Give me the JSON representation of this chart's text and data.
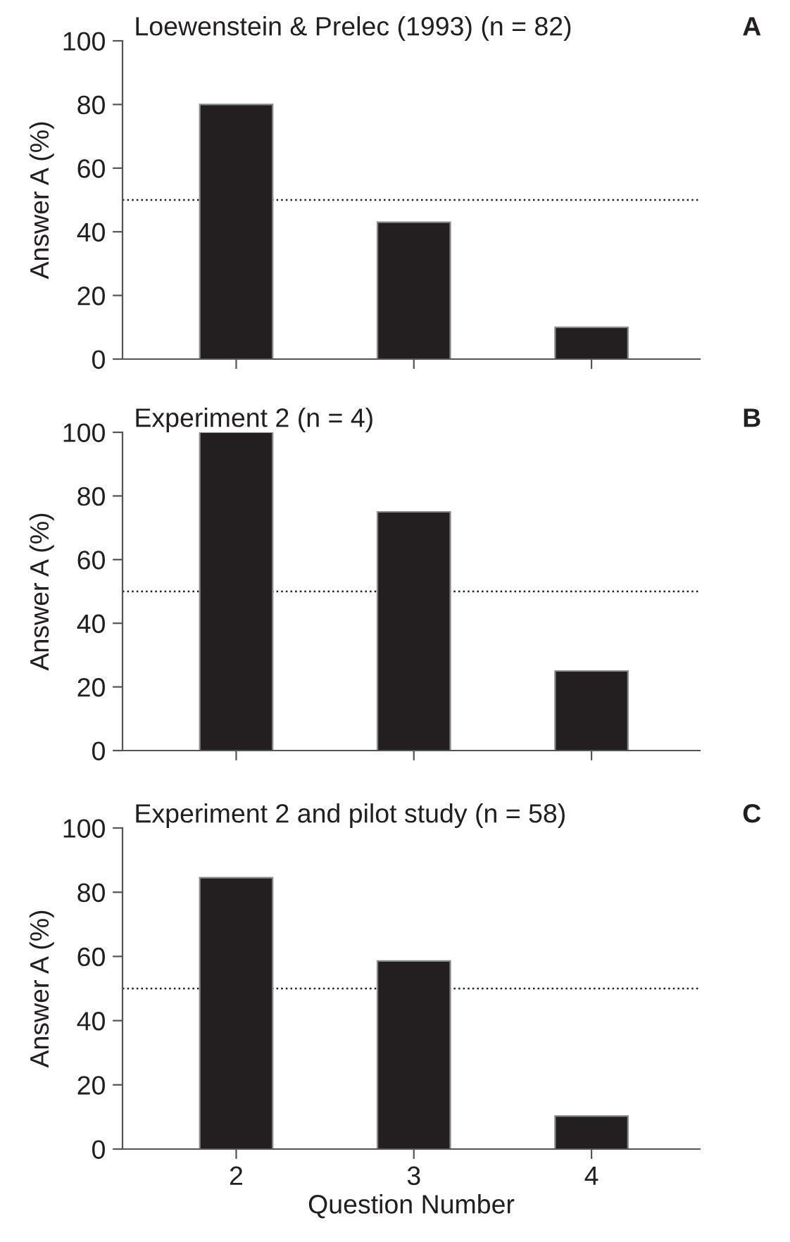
{
  "chart_data": [
    {
      "type": "bar",
      "title": "Loewenstein & Prelec (1993) (n = 82)",
      "ylabel": "Answer A (%)",
      "categories": [
        "2",
        "3",
        "4"
      ],
      "values": [
        80,
        43,
        10
      ],
      "color": "#231f20",
      "ylim": [
        0,
        100
      ],
      "yticks": [
        0,
        20,
        40,
        60,
        80,
        100
      ],
      "ref_lines": [
        {
          "axis": "y",
          "value": 50,
          "line_style": "dotted"
        }
      ],
      "annotations": [
        "A"
      ],
      "tick_labels": "y"
    },
    {
      "type": "bar",
      "title": "Experiment 2 (n = 4)",
      "ylabel": "Answer A (%)",
      "categories": [
        "2",
        "3",
        "4"
      ],
      "values": [
        100,
        75,
        25
      ],
      "color": "#231f20",
      "ylim": [
        0,
        100
      ],
      "yticks": [
        0,
        20,
        40,
        60,
        80,
        100
      ],
      "ref_lines": [
        {
          "axis": "y",
          "value": 50,
          "line_style": "dotted"
        }
      ],
      "annotations": [
        "B"
      ],
      "tick_labels": "y"
    },
    {
      "type": "bar",
      "title": "Experiment 2 and pilot study (n = 58)",
      "xlabel": "Question Number",
      "ylabel": "Answer A (%)",
      "categories": [
        "2",
        "3",
        "4"
      ],
      "values": [
        84.5,
        58.6,
        10.3
      ],
      "color": "#231f20",
      "ylim": [
        0,
        100
      ],
      "yticks": [
        0,
        20,
        40,
        60,
        80,
        100
      ],
      "ref_lines": [
        {
          "axis": "y",
          "value": 50,
          "line_style": "dotted"
        }
      ],
      "annotations": [
        "C"
      ]
    }
  ]
}
